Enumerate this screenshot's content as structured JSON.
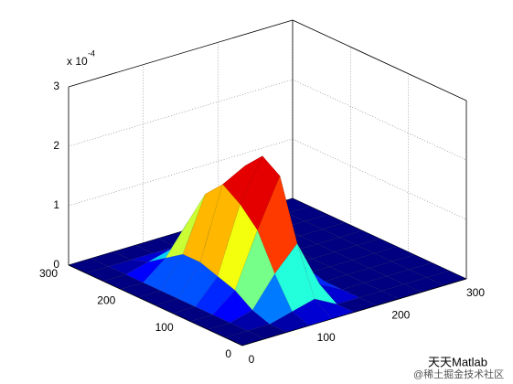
{
  "chart_data": {
    "type": "surface",
    "z_exponent_label": {
      "base": "x 10",
      "exponent": "-4"
    },
    "x": [
      0,
      30,
      60,
      90,
      120,
      150,
      180,
      210,
      240,
      270,
      300
    ],
    "y": [
      0,
      30,
      60,
      90,
      120,
      150,
      180,
      210,
      240,
      270,
      300
    ],
    "z": [
      [
        0,
        0,
        0,
        0,
        0,
        0,
        0,
        0,
        0,
        0,
        0
      ],
      [
        0,
        0,
        0,
        0.1,
        0.2,
        0,
        0,
        0,
        0,
        0,
        0
      ],
      [
        0,
        0,
        0.1,
        0.6,
        1.0,
        0.2,
        0,
        0,
        0,
        0,
        0
      ],
      [
        0,
        0,
        0.3,
        1.2,
        2.0,
        0.4,
        0,
        0,
        0,
        0,
        0
      ],
      [
        0,
        0,
        0.4,
        1.5,
        2.2,
        0.5,
        0,
        0,
        0,
        0,
        0
      ],
      [
        0,
        0,
        0.5,
        1.7,
        1.9,
        0.3,
        0,
        0,
        0,
        0,
        0
      ],
      [
        0,
        0,
        0.5,
        1.4,
        1.3,
        0.2,
        0,
        0,
        0,
        0,
        0
      ],
      [
        0,
        0,
        0.3,
        0.8,
        0.6,
        0.1,
        0,
        0,
        0,
        0,
        0
      ],
      [
        0,
        0,
        0.1,
        0.2,
        0.1,
        0,
        0,
        0,
        0,
        0,
        0
      ],
      [
        0,
        0,
        0,
        0,
        0,
        0,
        0,
        0,
        0,
        0,
        0
      ],
      [
        0,
        0,
        0,
        0,
        0,
        0,
        0,
        0,
        0,
        0,
        0
      ]
    ],
    "colormap": "jet",
    "xlim": [
      0,
      300
    ],
    "ylim": [
      0,
      300
    ],
    "zlim": [
      0,
      3
    ],
    "xticks": [
      0,
      100,
      200,
      300
    ],
    "yticks": [
      0,
      100,
      200,
      300
    ],
    "zticks": [
      0,
      1,
      2,
      3
    ],
    "grid": true
  },
  "watermark": {
    "title": "天天Matlab",
    "source": "@稀土掘金技术社区"
  }
}
